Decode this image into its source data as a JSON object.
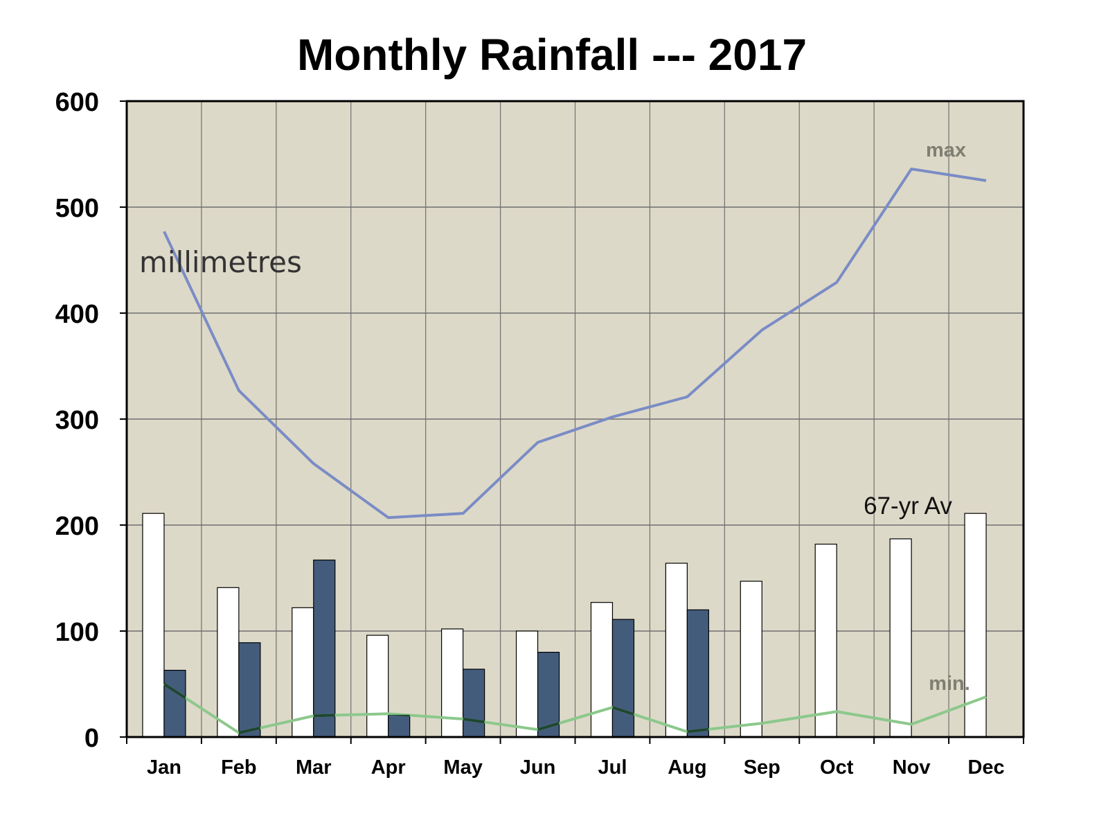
{
  "chart_data": {
    "type": "bar",
    "title": "Monthly Rainfall --- 2017",
    "unit_label": "millimetres",
    "categories": [
      "Jan",
      "Feb",
      "Mar",
      "Apr",
      "May",
      "Jun",
      "Jul",
      "Aug",
      "Sep",
      "Oct",
      "Nov",
      "Dec"
    ],
    "ylim": [
      0,
      600
    ],
    "yticks": [
      "0",
      "100",
      "200",
      "300",
      "400",
      "500",
      "600"
    ],
    "grid": true,
    "series": [
      {
        "name": "67-yr Av",
        "kind": "bar",
        "color": "#ffffff",
        "values": [
          211,
          141,
          122,
          96,
          102,
          100,
          127,
          164,
          147,
          182,
          187,
          211
        ]
      },
      {
        "kind": "bar",
        "color": "#445c7c",
        "values": [
          63,
          89,
          167,
          21,
          64,
          80,
          111,
          120,
          null,
          null,
          null,
          null
        ]
      },
      {
        "name": "max",
        "kind": "line",
        "color": "#7a8cc6",
        "values": [
          477,
          327,
          258,
          207,
          211,
          278,
          302,
          321,
          384,
          429,
          536,
          525
        ]
      },
      {
        "name": "min.",
        "kind": "line",
        "color": "#8cc88c",
        "values": [
          50,
          4,
          20,
          22,
          17,
          7,
          28,
          5,
          13,
          24,
          12,
          38
        ]
      }
    ],
    "annotations": {
      "max": "max",
      "min": "min.",
      "average": "67-yr Av"
    },
    "colors": {
      "plot_background": "#ddd9c8",
      "grid": "#6f6f6f",
      "min_line_overlap": "#1f4630"
    }
  }
}
